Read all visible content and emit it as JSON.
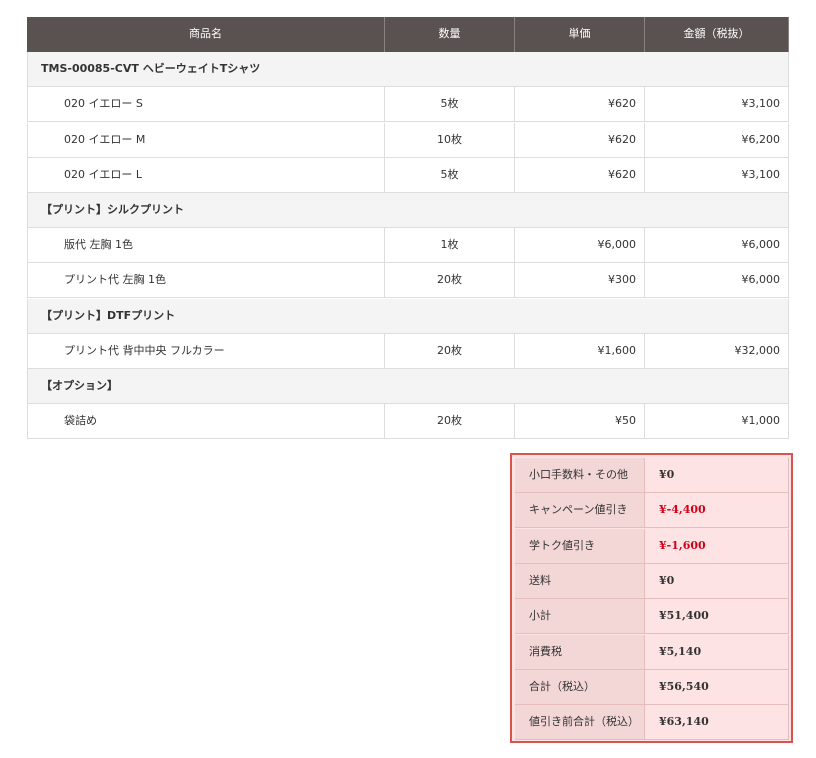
{
  "table": {
    "headers": [
      "商品名",
      "数量",
      "単価",
      "金額（税抜）"
    ],
    "rows": [
      {
        "label": "TMS-00085-CVT ヘビーウェイトTシャツ"
      },
      {
        "name": "020 イエロー S",
        "quantity": "5枚",
        "unit_price": "¥620",
        "amount": "¥3,100"
      },
      {
        "name": "020 イエロー M",
        "quantity": "10枚",
        "unit_price": "¥620",
        "amount": "¥6,200"
      },
      {
        "name": "020 イエロー L",
        "quantity": "5枚",
        "unit_price": "¥620",
        "amount": "¥3,100"
      },
      {
        "label": "【プリント】シルクプリント"
      },
      {
        "name": "版代 左胸 1色",
        "quantity": "1枚",
        "unit_price": "¥6,000",
        "amount": "¥6,000"
      },
      {
        "name": "プリント代 左胸 1色",
        "quantity": "20枚",
        "unit_price": "¥300",
        "amount": "¥6,000"
      },
      {
        "label": "【プリント】DTFプリント"
      },
      {
        "name": "プリント代 背中中央 フルカラー",
        "quantity": "20枚",
        "unit_price": "¥1,600",
        "amount": "¥32,000"
      },
      {
        "label": "【オプション】"
      },
      {
        "name": "袋詰め",
        "quantity": "20枚",
        "unit_price": "¥50",
        "amount": "¥1,000"
      }
    ]
  },
  "summary": {
    "rows": [
      {
        "label": "小口手数料・その他",
        "value": "¥0"
      },
      {
        "label": "キャンペーン値引き",
        "value": "¥-4,400",
        "color": "#d0021b"
      },
      {
        "label": "学トク値引き",
        "value": "¥-1,600",
        "color": "#d0021b"
      },
      {
        "label": "送料",
        "value": "¥0"
      },
      {
        "label": "小計",
        "value": "¥51,400"
      },
      {
        "label": "消費税",
        "value": "¥5,140"
      },
      {
        "label": "合計（税込）",
        "value": "¥56,540"
      },
      {
        "label": "値引き前合計（税込）",
        "value": "¥63,140"
      }
    ]
  }
}
